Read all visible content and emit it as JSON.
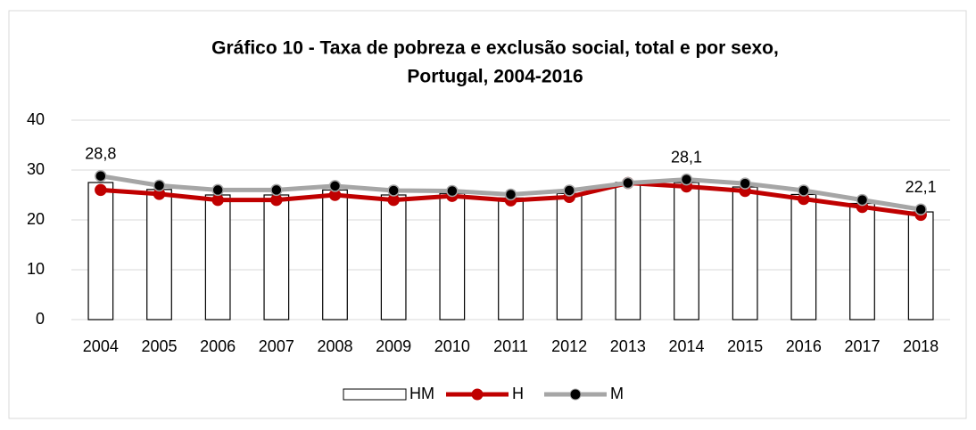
{
  "chart_data": {
    "type": "bar",
    "title": "Gráfico 10 - Taxa de pobreza e exclusão social, total e por sexo,",
    "subtitle": "Portugal, 2004-2016",
    "categories": [
      "2004",
      "2005",
      "2006",
      "2007",
      "2008",
      "2009",
      "2010",
      "2011",
      "2012",
      "2013",
      "2014",
      "2015",
      "2016",
      "2017",
      "2018"
    ],
    "series": [
      {
        "name": "HM",
        "type": "bar",
        "color": "#ffffff",
        "stroke": "#000000",
        "values": [
          27.5,
          26.1,
          25.0,
          25.0,
          26.0,
          25.0,
          25.3,
          24.4,
          25.3,
          27.5,
          27.5,
          26.6,
          25.1,
          23.3,
          21.6
        ]
      },
      {
        "name": "H",
        "type": "line",
        "color": "#c00000",
        "marker_color": "#c00000",
        "values": [
          26.0,
          25.2,
          24.0,
          24.0,
          25.0,
          24.0,
          24.8,
          23.9,
          24.6,
          27.4,
          26.7,
          25.8,
          24.2,
          22.6,
          21.0
        ]
      },
      {
        "name": "M",
        "type": "line",
        "color": "#a6a6a6",
        "marker_color": "#000000",
        "values": [
          28.8,
          26.9,
          26.0,
          26.0,
          26.8,
          25.9,
          25.8,
          25.1,
          25.9,
          27.4,
          28.1,
          27.3,
          25.9,
          24.0,
          22.1
        ],
        "value_labels": [
          "28,8",
          null,
          null,
          null,
          null,
          null,
          null,
          null,
          null,
          null,
          "28,1",
          null,
          null,
          null,
          "22,1"
        ]
      }
    ],
    "ylim": [
      0,
      40
    ],
    "yticks": [
      0,
      10,
      20,
      30,
      40
    ],
    "grid": true,
    "legend": "bottom"
  }
}
